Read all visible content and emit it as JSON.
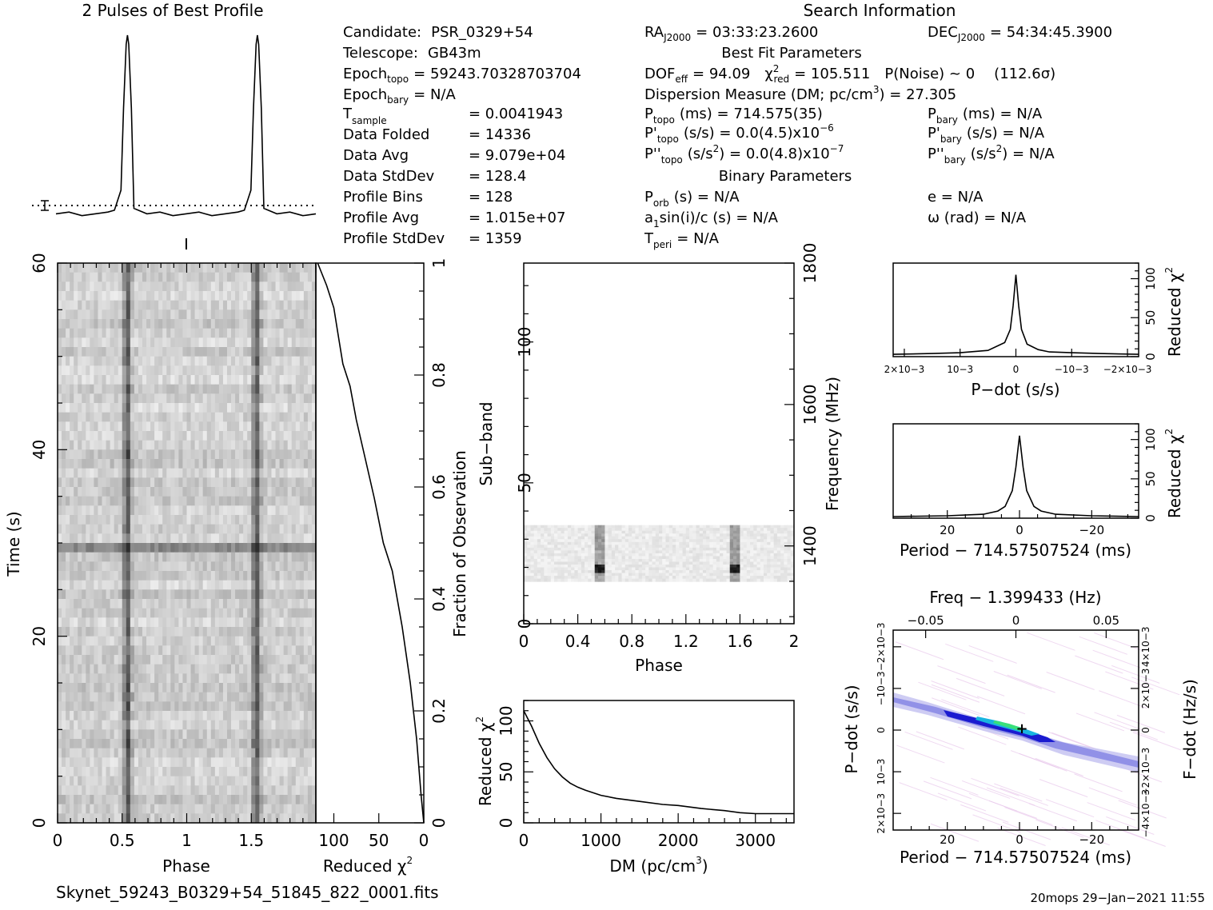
{
  "chart_data": [
    {
      "type": "line",
      "title": "2 Pulses of Best Profile",
      "x": [
        0.0,
        0.1,
        0.2,
        0.3,
        0.4,
        0.45,
        0.5,
        0.52,
        0.54,
        0.55,
        0.56,
        0.58,
        0.6,
        0.7,
        0.8,
        0.9,
        1.0,
        1.1,
        1.2,
        1.3,
        1.4,
        1.45,
        1.5,
        1.52,
        1.54,
        1.55,
        1.56,
        1.58,
        1.6,
        1.7,
        1.8,
        1.9,
        2.0
      ],
      "values": [
        0.02,
        0.03,
        0.01,
        0.02,
        0.03,
        0.04,
        0.15,
        0.6,
        0.95,
        1.0,
        0.95,
        0.6,
        0.05,
        0.02,
        0.03,
        0.01,
        0.02,
        0.03,
        0.01,
        0.02,
        0.03,
        0.04,
        0.15,
        0.6,
        0.95,
        1.0,
        0.95,
        0.6,
        0.05,
        0.02,
        0.03,
        0.01,
        0.02
      ],
      "mean_line": "dotted"
    },
    {
      "type": "heatmap",
      "name": "time-phase",
      "xlabel": "Phase",
      "ylabel": "Time (s)",
      "xlim": [
        0,
        2
      ],
      "ylim": [
        0,
        60
      ],
      "x_ticks": [
        "0",
        "0.5",
        "1",
        "1.5"
      ],
      "y_ticks": [
        "0",
        "20",
        "40",
        "60"
      ],
      "pulse_phases": [
        0.54,
        1.54
      ],
      "bright_row_time": 29.5
    },
    {
      "type": "line",
      "name": "cumulative-chi2",
      "xlabel": "Reduced χ2",
      "ylabel": "Fraction of Observation",
      "xlim": [
        120,
        0
      ],
      "ylim": [
        0,
        1
      ],
      "x_ticks": [
        "100",
        "50",
        "0"
      ],
      "y_ticks": [
        "0",
        "0.2",
        "0.4",
        "0.6",
        "0.8",
        "1"
      ],
      "x": [
        0,
        3,
        8,
        15,
        24,
        35,
        45,
        55,
        65,
        75,
        82,
        90,
        95,
        100,
        108,
        118
      ],
      "y": [
        0.0,
        0.05,
        0.15,
        0.25,
        0.35,
        0.45,
        0.5,
        0.58,
        0.65,
        0.72,
        0.78,
        0.82,
        0.87,
        0.92,
        0.96,
        1.0
      ]
    },
    {
      "type": "heatmap",
      "name": "subband-phase",
      "xlabel": "Phase",
      "ylabel": "Sub-band",
      "y2label": "Frequency (MHz)",
      "xlim": [
        0,
        2
      ],
      "ylim": [
        0,
        128
      ],
      "x_ticks": [
        "0",
        "0.4",
        "0.8",
        "1.2",
        "1.6",
        "2"
      ],
      "y_ticks": [
        "0",
        "50",
        "100"
      ],
      "y2_ticks": [
        "1400",
        "1600",
        "1800"
      ],
      "band_range": [
        15,
        35
      ],
      "pulse_phases": [
        0.56,
        1.56
      ]
    },
    {
      "type": "line",
      "name": "dm-chi2",
      "xlabel": "DM (pc/cm3)",
      "ylabel": "Reduced χ2",
      "xlim": [
        0,
        3500
      ],
      "ylim": [
        0,
        120
      ],
      "x_ticks": [
        "0",
        "1000",
        "2000",
        "3000"
      ],
      "y_ticks": [
        "0",
        "50",
        "100"
      ],
      "x": [
        0,
        100,
        200,
        300,
        400,
        500,
        600,
        700,
        800,
        1000,
        1200,
        1500,
        1800,
        2000,
        2300,
        2600,
        2800,
        3000,
        3200,
        3500
      ],
      "y": [
        110,
        95,
        78,
        64,
        53,
        45,
        39,
        35,
        32,
        27,
        24,
        21,
        18,
        17,
        14,
        12,
        10,
        9,
        9,
        9
      ]
    },
    {
      "type": "line",
      "name": "pdot-chi2",
      "xlabel": "P−dot (s/s)",
      "ylabel": "Reduced χ2",
      "xlim": [
        0.0022,
        -0.0022
      ],
      "ylim": [
        0,
        120
      ],
      "x_ticks": [
        "2×10−3",
        "10−3",
        "0",
        "−10−3",
        "−2×10−3"
      ],
      "y_ticks": [
        "0",
        "50",
        "100"
      ],
      "x": [
        0.0022,
        0.0015,
        0.001,
        0.0005,
        0.0002,
        0.0001,
        5e-05,
        0.0,
        -5e-05,
        -0.0001,
        -0.0002,
        -0.0004,
        -0.0006,
        -0.001,
        -0.0015,
        -0.0022
      ],
      "y": [
        3,
        4,
        5,
        8,
        18,
        35,
        65,
        105,
        65,
        35,
        16,
        9,
        6,
        5,
        4,
        3
      ]
    },
    {
      "type": "line",
      "name": "period-chi2",
      "xlabel": "Period − 714.57507524 (ms)",
      "ylabel": "Reduced χ2",
      "xlim": [
        35,
        -33
      ],
      "ylim": [
        0,
        120
      ],
      "x_ticks": [
        "20",
        "0",
        "−20"
      ],
      "y_ticks": [
        "0",
        "50",
        "100"
      ],
      "x": [
        35,
        20,
        10,
        6,
        4,
        2,
        1,
        0,
        -1,
        -2,
        -4,
        -6,
        -10,
        -20,
        -33
      ],
      "y": [
        2,
        3,
        5,
        9,
        15,
        35,
        65,
        105,
        65,
        35,
        15,
        9,
        5,
        3,
        2
      ]
    },
    {
      "type": "heatmap",
      "name": "p-pdot-plane",
      "title": "Freq − 1.399433 (Hz)",
      "xlabel": "Period − 714.57507524 (ms)",
      "ylabel": "P−dot (s/s)",
      "y2label": "F−dot (Hz/s)",
      "x_ticks": [
        "20",
        "0",
        "−20"
      ],
      "top_ticks": [
        "−0.05",
        "0",
        "0.05"
      ],
      "y_ticks": [
        "2×10−3",
        "10−3",
        "0",
        "−10−3",
        "−2×10−3"
      ],
      "y2_ticks": [
        "−4×10−3",
        "−2×10−3",
        "0",
        "2×10−3",
        "4×10−3"
      ]
    }
  ],
  "info": {
    "title": "Search Information",
    "candidate_label": "Candidate:",
    "candidate": "PSR_0329+54",
    "telescope_label": "Telescope:",
    "telescope": "GB43m",
    "epoch_topo_label": "Epoch",
    "epoch_topo_sub": "topo",
    "epoch_topo": "= 59243.70328703704",
    "epoch_bary_label": "Epoch",
    "epoch_bary_sub": "bary",
    "epoch_bary": "= N/A",
    "tsample_label": "T",
    "tsample_sub": "sample",
    "tsample": "=    0.0041943",
    "folded_label": "Data Folded",
    "folded": "=    14336",
    "avg_label": "Data Avg",
    "avg": "=    9.079e+04",
    "std_label": "Data StdDev",
    "std": "=    128.4",
    "bins_label": "Profile Bins",
    "bins": "=    128",
    "pavg_label": "Profile Avg",
    "pavg": "=    1.015e+07",
    "pstd_label": "Profile StdDev",
    "pstd": "=    1359",
    "ra_label": "RA",
    "ra_sub": "J2000",
    "ra": "= 03:33:23.2600",
    "dec_label": "DEC",
    "dec_sub": "J2000",
    "dec": "= 54:34:45.3900",
    "bestfit_title": "Best Fit Parameters",
    "dof_label": "DOF",
    "dof_sub": "eff",
    "dof": "= 94.09",
    "chi_label": "χ",
    "chi_sup": "2",
    "chi_sub": "red",
    "chi": "= 105.511",
    "pnoise": "P(Noise) ~ 0",
    "sigma": "(112.6σ)",
    "dm_line": "Dispersion Measure (DM; pc/cm",
    "dm_sup": "3",
    "dm_value": ") = 27.305",
    "ptopo_label": "P",
    "ptopo_sub": "topo",
    "ptopo": "(ms)  =   714.575(35)",
    "pbary_label": "P",
    "pbary_sub": "bary",
    "pbary": "(ms) = N/A",
    "pdtopo_label": "P'",
    "pdtopo_sub": "topo",
    "pdtopo": "(s/s) = 0.0(4.5)x10",
    "pdtopo_sup": "−6",
    "pdbary_label": "P'",
    "pdbary_sub": "bary",
    "pdbary": "(s/s) = N/A",
    "pddtopo_label": "P''",
    "pddtopo_sub": "topo",
    "pddtopo_a": "(s/s",
    "pddtopo_sup2": "2",
    "pddtopo_b": ") = 0.0(4.8)x10",
    "pddtopo_sup": "−7",
    "pddbary_label": "P''",
    "pddbary_sub": "bary",
    "pddbary_a": "(s/s",
    "pddbary_sup2": "2",
    "pddbary_b": ") = N/A",
    "binary_title": "Binary Parameters",
    "porb_label": "P",
    "porb_sub": "orb",
    "porb": "(s) = N/A",
    "e": "e = N/A",
    "a1_label": "a",
    "a1_sub": "1",
    "a1": "sin(i)/c (s) = N/A",
    "omega": "ω (rad) = N/A",
    "tperi_label": "T",
    "tperi_sub": "peri",
    "tperi": "= N/A"
  },
  "footer": {
    "filename": "Skynet_59243_B0329+54_51845_822_0001.fits",
    "stamp": "20mops 29−Jan−2021 11:55"
  },
  "labels": {
    "frac_label": "Fraction of Observation",
    "time_label": "Time (s)",
    "phase": "Phase",
    "reduced": "Reduced χ",
    "two": "2",
    "dm": "DM (pc/cm",
    "three": "3",
    "close": ")",
    "subband": "Sub−band",
    "freq": "Frequency (MHz)",
    "pdot_axis": "P−dot (s/s)",
    "period_axis": "Period − 714.57507524 (ms)",
    "fdot_axis": "F−dot (Hz/s)",
    "freq_title": "Freq − 1.399433 (Hz)"
  }
}
